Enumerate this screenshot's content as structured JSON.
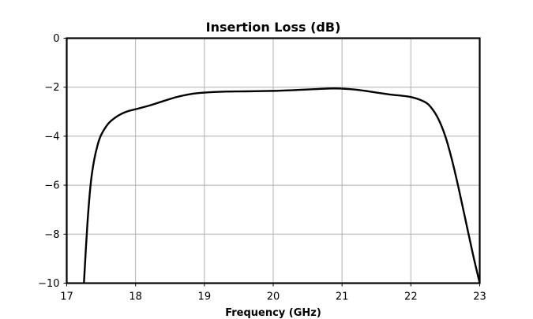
{
  "chart_data": {
    "type": "line",
    "title": "Insertion Loss (dB)",
    "xlabel": "Frequency (GHz)",
    "ylabel": "",
    "xlim": [
      17,
      23
    ],
    "ylim": [
      -10,
      0
    ],
    "xticks": [
      17,
      18,
      19,
      20,
      21,
      22,
      23
    ],
    "yticks": [
      0,
      -2,
      -4,
      -6,
      -8,
      -10
    ],
    "xtick_labels": [
      "17",
      "18",
      "19",
      "20",
      "21",
      "22",
      "23"
    ],
    "ytick_labels": [
      "0",
      "−2",
      "−4",
      "−6",
      "−8",
      "−10"
    ],
    "grid": true,
    "legend": "none",
    "series": [
      {
        "color": "#000000",
        "x": [
          17.25,
          17.3,
          17.35,
          17.4,
          17.45,
          17.5,
          17.6,
          17.7,
          17.8,
          17.9,
          18.0,
          18.2,
          18.4,
          18.6,
          18.8,
          19.0,
          19.3,
          19.6,
          20.0,
          20.3,
          20.6,
          20.9,
          21.2,
          21.5,
          21.7,
          22.0,
          22.2,
          22.3,
          22.4,
          22.5,
          22.6,
          22.7,
          22.8,
          22.9,
          23.0
        ],
        "y": [
          -10.0,
          -7.6,
          -5.9,
          -4.95,
          -4.35,
          -3.95,
          -3.5,
          -3.25,
          -3.08,
          -2.97,
          -2.9,
          -2.75,
          -2.57,
          -2.4,
          -2.28,
          -2.22,
          -2.18,
          -2.17,
          -2.15,
          -2.12,
          -2.08,
          -2.05,
          -2.1,
          -2.22,
          -2.3,
          -2.4,
          -2.6,
          -2.85,
          -3.3,
          -4.0,
          -5.0,
          -6.2,
          -7.5,
          -8.8,
          -10.0
        ]
      }
    ]
  }
}
